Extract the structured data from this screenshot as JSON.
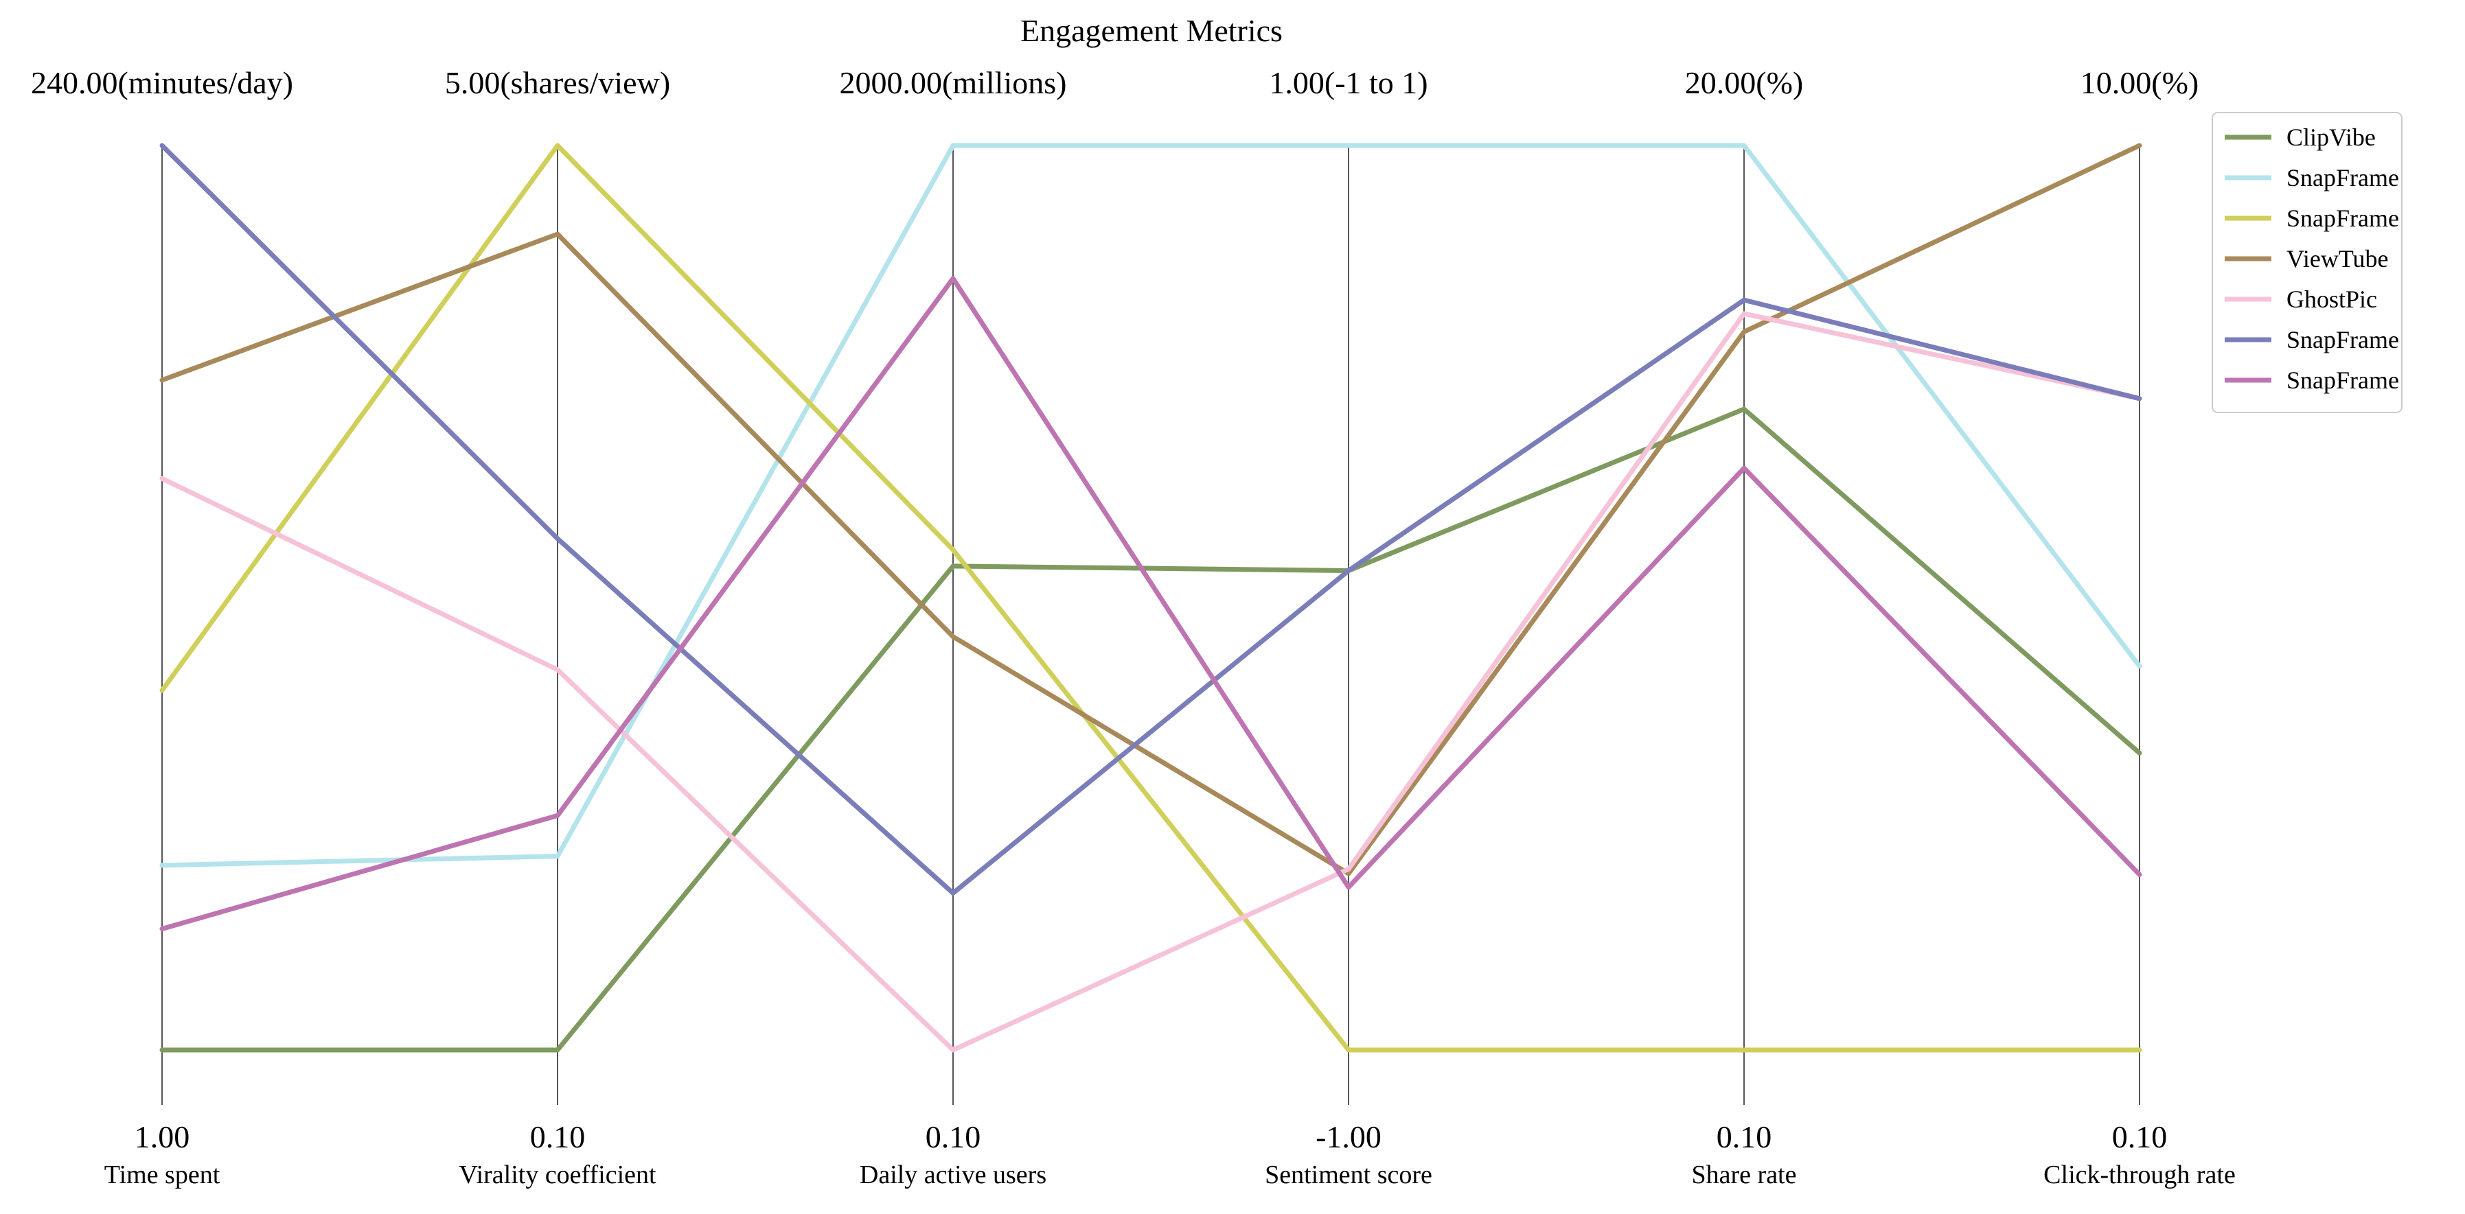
{
  "chart_data": {
    "type": "parallel-coordinates",
    "title": "Engagement Metrics",
    "legend": {
      "placement": "top-right"
    },
    "grid": false,
    "axes": [
      {
        "name": "Time spent",
        "min": 1.0,
        "max": 240.0,
        "min_label": "1.00",
        "max_label": "240.00(minutes/day)"
      },
      {
        "name": "Virality coefficient",
        "min": 0.1,
        "max": 5.0,
        "min_label": "0.10",
        "max_label": "5.00(shares/view)"
      },
      {
        "name": "Daily active users",
        "min": 0.1,
        "max": 2000.0,
        "min_label": "0.10",
        "max_label": "2000.00(millions)"
      },
      {
        "name": "Sentiment score",
        "min": -1.0,
        "max": 1.0,
        "min_label": "-1.00",
        "max_label": "1.00(-1 to 1)"
      },
      {
        "name": "Share rate",
        "min": 0.1,
        "max": 20.0,
        "min_label": "0.10",
        "max_label": "20.00(%)"
      },
      {
        "name": "Click-through rate",
        "min": 0.1,
        "max": 10.0,
        "min_label": "0.10",
        "max_label": "10.00(%)"
      }
    ],
    "series": [
      {
        "name": "ClipVibe",
        "color": "#7f9a5e",
        "values": [
          1.0,
          0.1,
          1070.0,
          0.06,
          14.2,
          3.35
        ]
      },
      {
        "name": "SnapFrame",
        "color": "#b3e3eb",
        "values": [
          49.8,
          1.15,
          2000.0,
          1.0,
          20.0,
          4.3
        ]
      },
      {
        "name": "SnapFrame",
        "color": "#cfcf5a",
        "values": [
          96.0,
          5.0,
          1106.0,
          -1.0,
          0.1,
          0.1
        ]
      },
      {
        "name": "ViewTube",
        "color": "#a8895a",
        "values": [
          178.0,
          4.52,
          914.0,
          -0.61,
          15.9,
          10.0
        ]
      },
      {
        "name": "GhostPic",
        "color": "#f6c2d8",
        "values": [
          152.0,
          2.16,
          0.1,
          -0.6,
          16.3,
          7.23
        ]
      },
      {
        "name": "SnapFrame",
        "color": "#7a7db9",
        "values": [
          240.0,
          2.87,
          347.0,
          0.06,
          16.6,
          7.23
        ]
      },
      {
        "name": "SnapFrame",
        "color": "#bd74b1",
        "values": [
          33.0,
          1.37,
          1706.0,
          -0.64,
          12.9,
          2.02
        ]
      }
    ]
  }
}
